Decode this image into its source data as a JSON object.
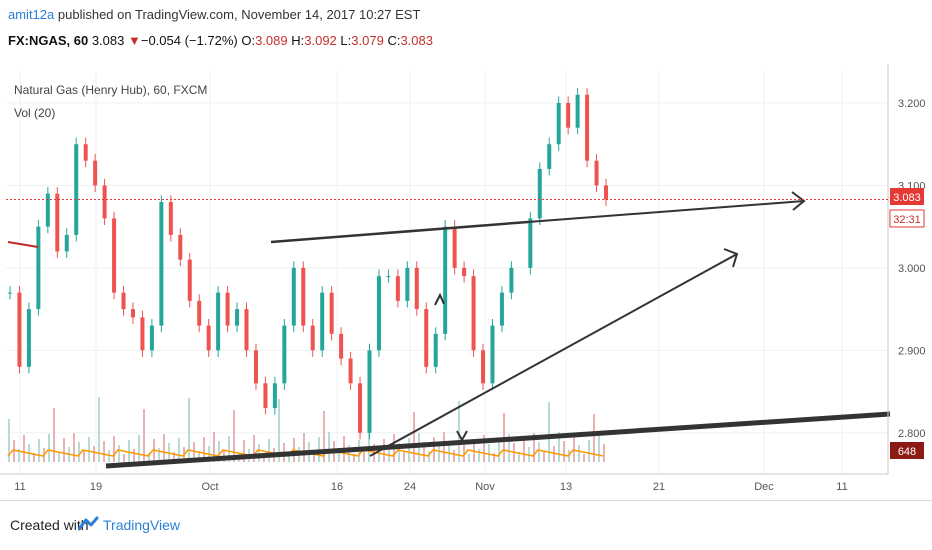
{
  "header": {
    "author": "amit12a",
    "published": "published on TradingView.com, November 14, 2017 10:27 EST",
    "symbol": "FX:NGAS, 60",
    "last": "3.083",
    "change_arrow": "▼",
    "change": "−0.054 (−1.72%)",
    "o_label": "O:",
    "o_value": "3.089",
    "h_label": "H:",
    "h_value": "3.092",
    "l_label": "L:",
    "l_value": "3.079",
    "c_label": "C:",
    "c_value": "3.083"
  },
  "legend": {
    "title": "Natural Gas (Henry Hub), 60, FXCM",
    "volume": "Vol (20)"
  },
  "price_badge": "3.083",
  "countdown_badge": "32:31",
  "volume_badge": "648",
  "footer": {
    "created_with": "Created with",
    "brand": "TradingView"
  },
  "colors": {
    "up": "#26a69a",
    "down": "#ef5350",
    "trendline": "#333333",
    "price_line": "#e53935",
    "volume_ma": "#ff9800",
    "brand": "#2a7fd4"
  },
  "chart_data": {
    "type": "candlestick",
    "title": "Natural Gas (Henry Hub), 60, FXCM",
    "x_ticks": [
      "11",
      "19",
      "Oct",
      "16",
      "24",
      "Nov",
      "13",
      "21",
      "Dec",
      "11"
    ],
    "y_ticks": [
      "3.200",
      "3.100",
      "3.000",
      "2.900",
      "2.800"
    ],
    "y_tick_values": [
      3.2,
      3.1,
      3.0,
      2.9,
      2.8
    ],
    "ylim": [
      2.75,
      3.24
    ],
    "grid": true,
    "last_price": 3.083,
    "volume_ma_last": 648,
    "series": [
      {
        "name": "price",
        "values": [
          2.97,
          2.88,
          2.95,
          3.05,
          3.09,
          3.02,
          3.04,
          3.15,
          3.13,
          3.1,
          3.06,
          2.97,
          2.95,
          2.94,
          2.9,
          2.93,
          3.08,
          3.04,
          3.01,
          2.96,
          2.93,
          2.9,
          2.97,
          2.93,
          2.95,
          2.9,
          2.86,
          2.83,
          2.86,
          2.93,
          3.0,
          2.93,
          2.9,
          2.97,
          2.92,
          2.89,
          2.86,
          2.8,
          2.9,
          2.99,
          2.99,
          2.96,
          3.0,
          2.95,
          2.88,
          2.92,
          3.05,
          3.0,
          2.99,
          2.9,
          2.86,
          2.93,
          2.97,
          3.0,
          null,
          3.06,
          3.12,
          3.15,
          3.2,
          3.17,
          3.21,
          3.13,
          3.1,
          3.083
        ]
      }
    ],
    "annotations": [
      {
        "type": "trendline",
        "from": [
          "Oct 11",
          3.035
        ],
        "to": [
          "Nov 6",
          3.06
        ]
      },
      {
        "type": "trendline_arrow",
        "from": [
          "Nov 6",
          3.06
        ],
        "to": [
          "Dec 7",
          3.085
        ]
      },
      {
        "type": "trendline_arrow",
        "from": [
          "Oct 17",
          2.78
        ],
        "to": [
          "Nov 27",
          3.02
        ]
      },
      {
        "type": "trendline",
        "from": [
          "Sep 19",
          2.75
        ],
        "to": [
          "Dec 16",
          2.81
        ]
      }
    ]
  }
}
